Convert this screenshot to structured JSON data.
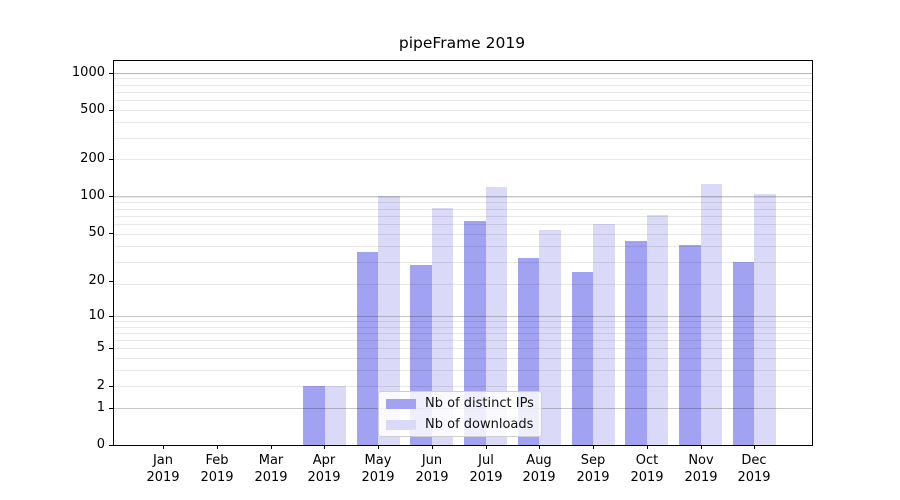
{
  "figure": {
    "title": "pipeFrame 2019"
  },
  "chart_data": {
    "type": "bar",
    "title": "pipeFrame 2019",
    "categories": [
      "Jan",
      "Feb",
      "Mar",
      "Apr",
      "May",
      "Jun",
      "Jul",
      "Aug",
      "Sep",
      "Oct",
      "Nov",
      "Dec"
    ],
    "year_label": "2019",
    "series": [
      {
        "name": "Nb of distinct IPs",
        "color": "#a2a2f3",
        "values": [
          0,
          0,
          0,
          2,
          35,
          27,
          63,
          31,
          24,
          43,
          40,
          29
        ]
      },
      {
        "name": "Nb of downloads",
        "color": "#dadaf8",
        "values": [
          0,
          0,
          0,
          2,
          100,
          80,
          120,
          53,
          59,
          70,
          125,
          104
        ]
      }
    ],
    "yscale": "symlog (position proportional to log(1+y))",
    "ylim": [
      0,
      1240
    ],
    "yticks": [
      0,
      1,
      2,
      5,
      10,
      20,
      50,
      100,
      200,
      500,
      1000
    ],
    "grid": {
      "orientation": "horizontal",
      "major_values": [
        1,
        10,
        100,
        1000
      ],
      "minor_values_plus1": [
        3,
        4,
        5,
        6,
        7,
        8,
        9,
        10,
        20,
        30,
        40,
        50,
        60,
        70,
        80,
        90,
        100,
        200,
        300,
        400,
        500,
        600,
        700,
        800,
        900,
        1000
      ]
    },
    "legend": {
      "entries": [
        "Nb of distinct IPs",
        "Nb of downloads"
      ],
      "position": "lower center inside plot"
    }
  }
}
